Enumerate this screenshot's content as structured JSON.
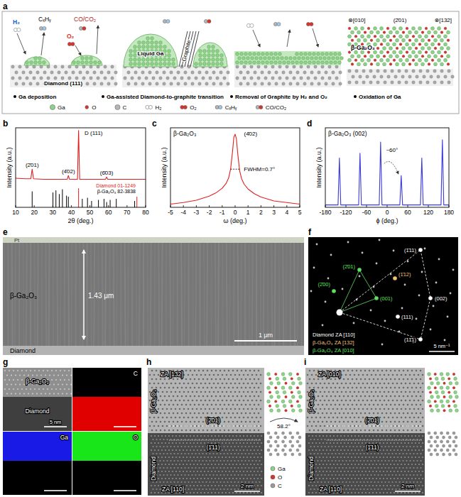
{
  "panel_a": {
    "label": "a",
    "texts": {
      "h2": "H₂",
      "cxhy": "CₓHᵧ",
      "coco2": "CO/CO₂",
      "o2": "O₂",
      "substrate": "Diamond (111)",
      "liquid": "Liquid Ga",
      "graphite": "Graphite",
      "dir1": "⊗[010]",
      "plane": "(2̄01)",
      "dir2": "⊗[132]",
      "product": "β-Ga₂O₃"
    },
    "steps": [
      "Ga deposition",
      "Ga-assisted Diamond-to-graphite transition",
      "Removal of Graphite by H₂ and O₂",
      "Oxidation of Ga"
    ],
    "legend": [
      {
        "name": "Ga",
        "color": "#8fd18a"
      },
      {
        "name": "O",
        "color": "#d9342b"
      },
      {
        "name": "C",
        "color": "#b5b5b5"
      },
      {
        "name": "H₂",
        "color": "#ffffff"
      },
      {
        "name": "O₂",
        "color": "#d9342b"
      },
      {
        "name": "CₓHᵧ",
        "color": "#9ec8e8"
      },
      {
        "name": "CO/CO₂",
        "color": "#d9342b"
      }
    ]
  },
  "chart_data": [
    {
      "panel_label": "b",
      "type": "line",
      "xlabel": "2θ (deg.)",
      "ylabel": "Intensity (a.u.)",
      "xlim": [
        10,
        80
      ],
      "xticks": [
        10,
        20,
        30,
        40,
        50,
        60,
        70,
        80
      ],
      "ylim": [
        -50,
        100
      ],
      "tick_labels": "x",
      "color": "#e02020",
      "x": [
        10,
        15,
        18.2,
        18.9,
        19.6,
        25,
        30,
        37.8,
        38.4,
        39.0,
        43.3,
        43.9,
        44.5,
        50,
        58.4,
        59.0,
        59.6,
        65,
        70,
        75,
        80
      ],
      "values": [
        5,
        4,
        4,
        22,
        4,
        3,
        3,
        3,
        10,
        3,
        3,
        95,
        3,
        3,
        3,
        7,
        3,
        3,
        3,
        3,
        3
      ],
      "annotations": [
        {
          "text": "D (111)",
          "x": 52,
          "y": 86
        },
        {
          "text": "(2̄01)",
          "x": 18.9,
          "y": 26
        },
        {
          "text": "(4̄02)",
          "x": 38.4,
          "y": 14
        },
        {
          "text": "(6̄03)",
          "x": 59,
          "y": 11
        }
      ],
      "references": [
        {
          "name": "Diamond 01-1249",
          "color": "#e02020",
          "x": [
            43.9,
            75.3
          ],
          "values": [
            -14,
            -30
          ]
        },
        {
          "name": "β-Ga₂O₃ 82-3838",
          "color": "#000000",
          "x": [
            18.9,
            30.1,
            31.7,
            33.5,
            35.2,
            37.4,
            38.4,
            45.9,
            48.7,
            50.9,
            54.6,
            57.6,
            59.0,
            60.9,
            64.2,
            74.1
          ],
          "values": [
            -20,
            -22,
            -18,
            -25,
            -16,
            -28,
            -30,
            -34,
            -32,
            -38,
            -36,
            -34,
            -40,
            -36,
            -34,
            -38
          ]
        }
      ]
    },
    {
      "panel_label": "c",
      "type": "line",
      "title": "β-Ga₂O₃",
      "xlabel": "ω (deg.)",
      "ylabel": "Intensity (a.u.)",
      "xlim": [
        -5,
        5
      ],
      "xticks": [
        -5,
        -4,
        -3,
        -2,
        -1,
        0,
        1,
        2,
        3,
        4,
        5
      ],
      "ylim": [
        0,
        100
      ],
      "tick_labels": "x",
      "color": "#e02020",
      "x": [
        -5,
        -4,
        -3,
        -2,
        -1.5,
        -1,
        -0.7,
        -0.5,
        -0.35,
        -0.2,
        -0.1,
        0,
        0.1,
        0.2,
        0.35,
        0.5,
        0.7,
        1,
        1.5,
        2,
        3,
        4,
        5
      ],
      "values": [
        4,
        6,
        9,
        14,
        18,
        24,
        30,
        37,
        48,
        70,
        88,
        92,
        86,
        68,
        46,
        36,
        29,
        23,
        17,
        13,
        8,
        6,
        4
      ],
      "annotations": [
        {
          "text": "(4̄02)",
          "x": 1.2,
          "y": 90
        }
      ],
      "fwhm": {
        "text": "FWHM=0.7°",
        "value": 0.7,
        "y": 48
      }
    },
    {
      "panel_label": "d",
      "type": "line",
      "title": "β-Ga₂O₃ (002)",
      "xlabel": "ϕ (deg.)",
      "ylabel": "Intensity (a.u.)",
      "xlim": [
        -180,
        180
      ],
      "xticks": [
        -180,
        -120,
        -60,
        0,
        60,
        120,
        180
      ],
      "ylim": [
        0,
        100
      ],
      "tick_labels": "x",
      "color": "#3a3ad8",
      "x": [
        -180,
        -143,
        -139,
        -135,
        -83,
        -79,
        -75,
        -23,
        -19,
        -15,
        37,
        41,
        45,
        97,
        101,
        105,
        157,
        161,
        165,
        180
      ],
      "values": [
        3,
        3,
        62,
        3,
        3,
        68,
        3,
        3,
        82,
        3,
        3,
        40,
        3,
        3,
        62,
        3,
        3,
        85,
        3,
        3
      ],
      "annotations": [
        {
          "text": "~60°",
          "x": 14,
          "y": 70,
          "span": [
            -19,
            41
          ]
        }
      ]
    }
  ],
  "panel_e": {
    "label": "e",
    "pt": "Pt",
    "film": "β-Ga₂O₃",
    "thickness": "1.43 μm",
    "substrate": "Diamond",
    "scale": "1 μm"
  },
  "panel_f": {
    "label": "f",
    "spots": [
      {
        "text": "(1̄11)",
        "color": "#ffffff"
      },
      {
        "text": "(002)",
        "color": "#ffffff"
      },
      {
        "text": "(11̄1)",
        "color": "#ffffff"
      },
      {
        "text": "(1̄12)",
        "color": "#f3c27a"
      },
      {
        "text": "(111)",
        "color": "#ffffff"
      },
      {
        "text": "(2̄01)",
        "color": "#5fe05f"
      },
      {
        "text": "(2̄00)",
        "color": "#5fe05f"
      },
      {
        "text": "(001)",
        "color": "#5fe05f"
      }
    ],
    "legend": [
      {
        "name": "Diamond ZA [110]",
        "color": "#ffffff"
      },
      {
        "name": "β-Ga₂O₃ ZA [132]",
        "color": "#f3c27a"
      },
      {
        "name": "β-Ga₂O₃ ZA [010]",
        "color": "#5fe05f"
      }
    ],
    "scale": "5 nm⁻¹"
  },
  "panel_g": {
    "label": "g",
    "film": "β-Ga₂O₃",
    "substrate": "Diamond",
    "scale": "5 nm",
    "maps": [
      {
        "element": "C",
        "color": "#e00000"
      },
      {
        "element": "Ga",
        "color": "#1a1ae6"
      },
      {
        "element": "O",
        "color": "#19e619"
      }
    ]
  },
  "panel_h": {
    "label": "h",
    "za_top": "ZA [132]",
    "film": "β-Ga₂O₃",
    "plane_top": "(2̄01)",
    "plane_bottom": "(1̄11)",
    "substrate": "Diamond",
    "za_bottom": "ZA [110]",
    "scale": "2 nm",
    "legend": [
      {
        "name": "Ga",
        "color": "#8fd18a"
      },
      {
        "name": "O",
        "color": "#d9342b"
      },
      {
        "name": "C",
        "color": "#9a9a9a"
      }
    ],
    "rotation": "58.2°"
  },
  "panel_i": {
    "label": "i",
    "za_top": "ZA [010]",
    "film": "β-Ga₂O₃",
    "plane_top": "(2̄01)",
    "plane_bottom": "(1̄11)",
    "substrate": "Diamond",
    "za_bottom": "ZA [110]",
    "scale": "2 nm"
  }
}
